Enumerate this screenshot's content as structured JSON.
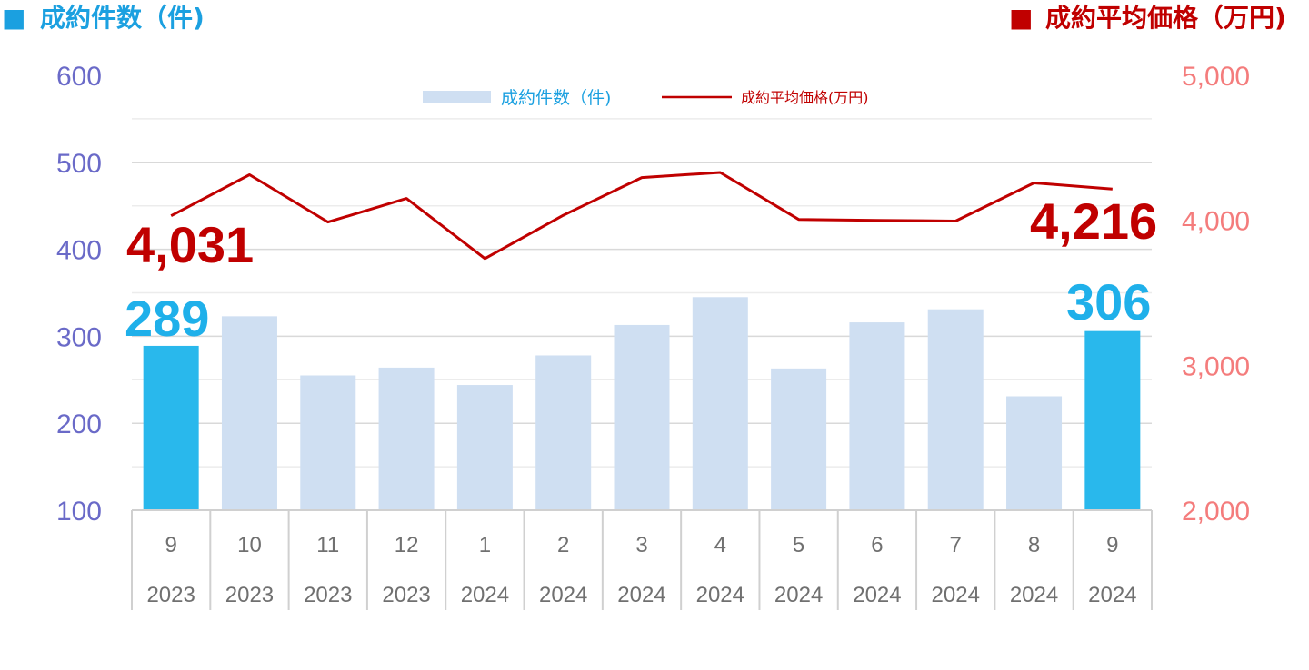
{
  "chart_data": {
    "type": "bar",
    "title_left": "成約件数（件)",
    "title_right": "成約平均価格（万円)",
    "title_left_marker": "■",
    "title_right_marker": "■",
    "categories": [
      "9",
      "10",
      "11",
      "12",
      "1",
      "2",
      "3",
      "4",
      "5",
      "6",
      "7",
      "8",
      "9"
    ],
    "years": [
      "2023",
      "2023",
      "2023",
      "2023",
      "2024",
      "2024",
      "2024",
      "2024",
      "2024",
      "2024",
      "2024",
      "2024",
      "2024"
    ],
    "series": [
      {
        "name": "成約件数（件)",
        "type": "bar",
        "axis": "left",
        "values": [
          289,
          323,
          255,
          264,
          244,
          278,
          313,
          345,
          263,
          316,
          331,
          231,
          306
        ],
        "highlight": [
          0,
          12
        ]
      },
      {
        "name": "成約平均価格(万円)",
        "type": "line",
        "axis": "right",
        "values": [
          4031,
          4314,
          3988,
          4151,
          3736,
          4035,
          4295,
          4330,
          4006,
          4000,
          3995,
          4258,
          4216
        ]
      }
    ],
    "y_left": {
      "min": 100,
      "max": 600,
      "ticks": [
        "100",
        "200",
        "300",
        "400",
        "500",
        "600"
      ]
    },
    "y_right": {
      "min": 2000,
      "max": 5000,
      "ticks": [
        "2,000",
        "3,000",
        "4,000",
        "5,000"
      ]
    },
    "callouts": {
      "price_first": "4,031",
      "price_last": "4,216",
      "count_first": "289",
      "count_last": "306"
    },
    "legend": {
      "bar": "成約件数（件)",
      "line": "成約平均価格(万円)",
      "placement": "top-center"
    },
    "colors": {
      "bar_default": "#cfdff2",
      "bar_highlight": "#29b8ec",
      "line": "#c00000",
      "left_axis_text": "#6a6ac8",
      "right_axis_text": "#f47c7c"
    },
    "grid": true
  }
}
